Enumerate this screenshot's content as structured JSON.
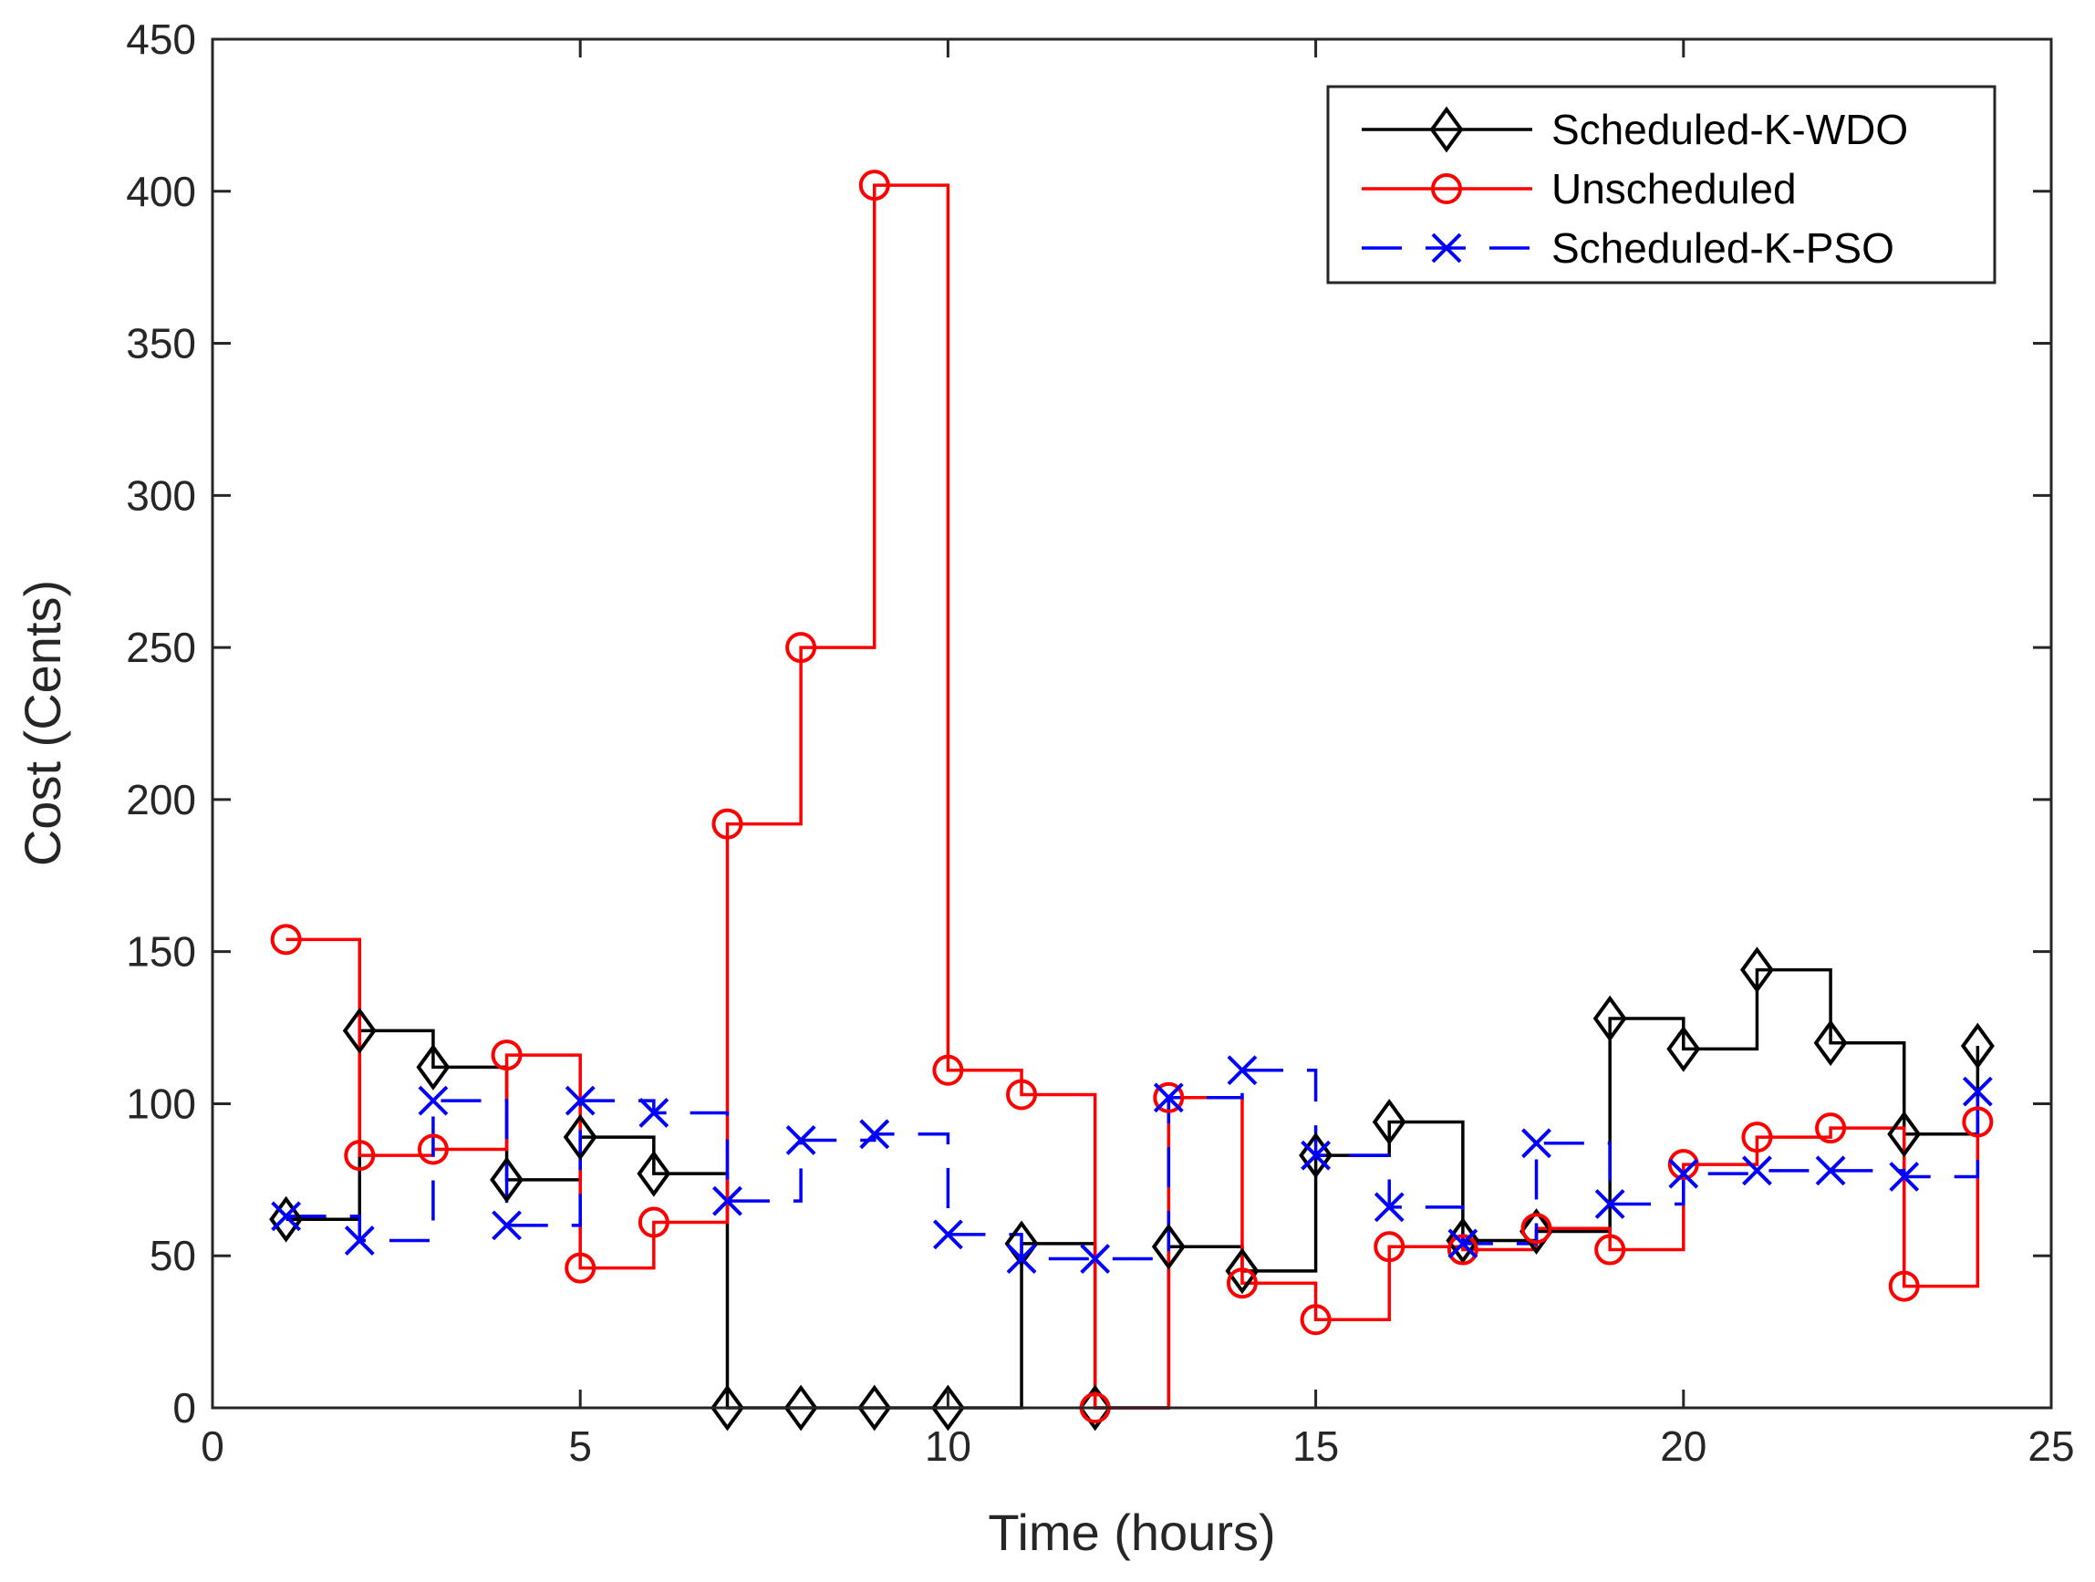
{
  "chart_data": {
    "type": "line",
    "step": "post",
    "title": "",
    "xlabel": "Time (hours)",
    "ylabel": "Cost (Cents)",
    "xlim": [
      0,
      25
    ],
    "ylim": [
      0,
      450
    ],
    "xticks": [
      0,
      5,
      10,
      15,
      20,
      25
    ],
    "yticks": [
      0,
      50,
      100,
      150,
      200,
      250,
      300,
      350,
      400,
      450
    ],
    "grid": false,
    "legend_position": "top-right",
    "x": [
      1,
      2,
      3,
      4,
      5,
      6,
      7,
      8,
      9,
      10,
      11,
      12,
      13,
      14,
      15,
      16,
      17,
      18,
      19,
      20,
      21,
      22,
      23,
      24
    ],
    "series": [
      {
        "name": "Scheduled-K-WDO",
        "color": "#000000",
        "line_style": "solid",
        "marker": "diamond",
        "values": [
          62,
          124,
          112,
          75,
          89,
          77,
          0,
          0,
          0,
          0,
          54,
          0,
          53,
          45,
          83,
          94,
          55,
          58,
          128,
          118,
          144,
          120,
          90,
          119
        ]
      },
      {
        "name": "Unscheduled",
        "color": "#ff0000",
        "line_style": "solid",
        "marker": "circle",
        "values": [
          154,
          83,
          85,
          116,
          46,
          61,
          192,
          250,
          402,
          111,
          103,
          0,
          102,
          41,
          29,
          53,
          52,
          59,
          52,
          80,
          89,
          92,
          40,
          94
        ]
      },
      {
        "name": "Scheduled-K-PSO",
        "color": "#0000ff",
        "line_style": "dashed",
        "marker": "x",
        "values": [
          63,
          55,
          101,
          60,
          101,
          97,
          68,
          88,
          90,
          57,
          49,
          49,
          102,
          111,
          83,
          66,
          54,
          87,
          67,
          77,
          78,
          78,
          76,
          104
        ]
      }
    ]
  }
}
